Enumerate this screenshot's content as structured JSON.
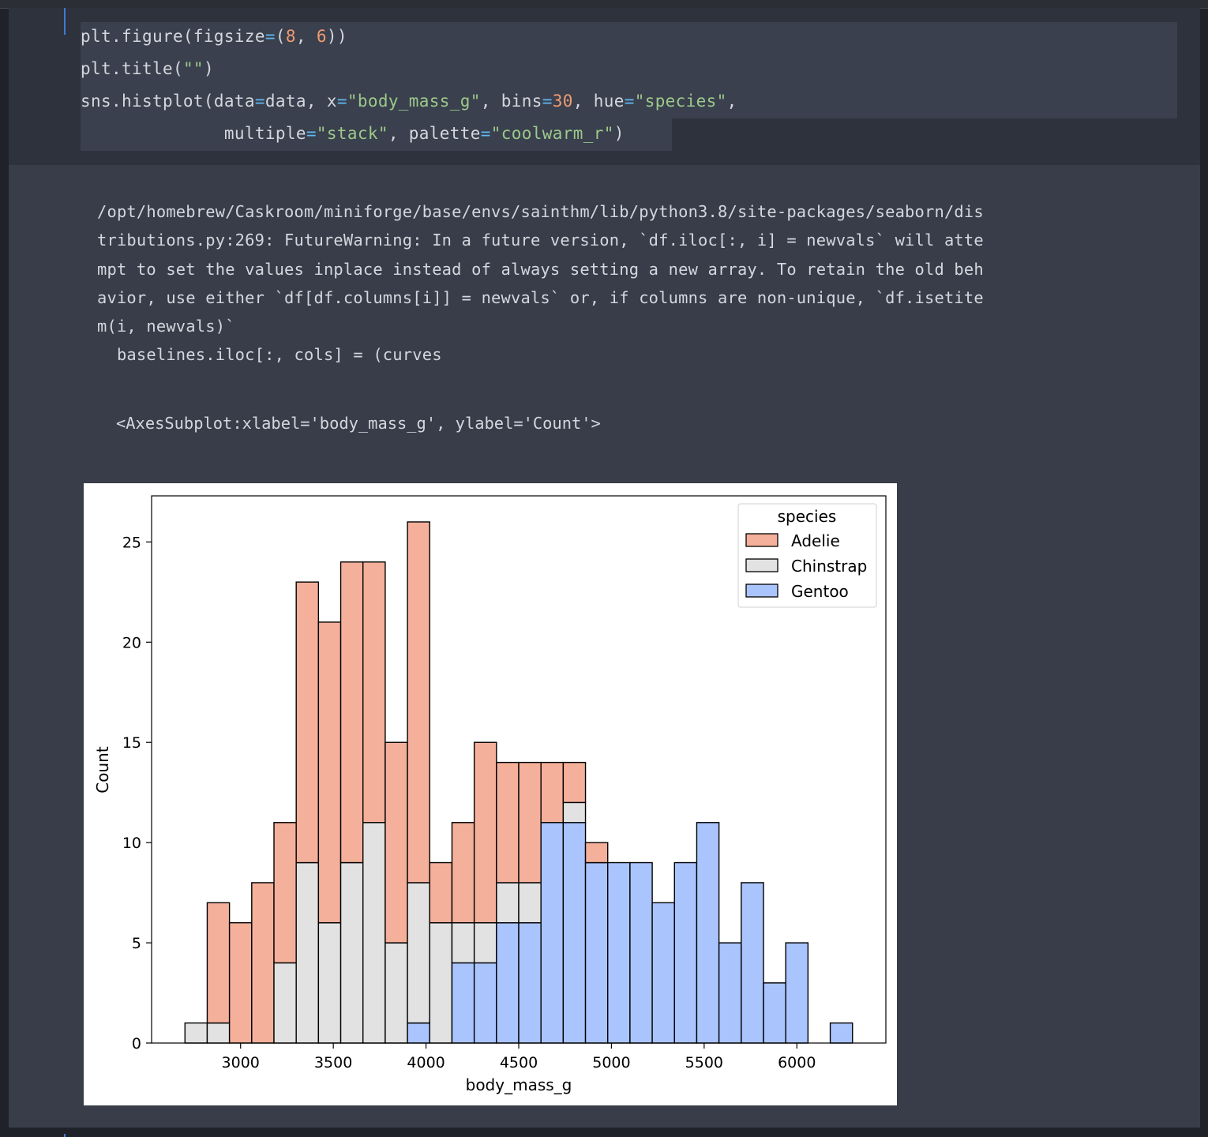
{
  "code": {
    "line1": {
      "a": "plt.figure(figsize",
      "op": "=",
      "b": "(",
      "n1": "8",
      "c": ", ",
      "n2": "6",
      "d": "))"
    },
    "line2": {
      "a": "plt.title(",
      "s": "\"\"",
      "b": ")"
    },
    "line3": {
      "a": "sns.histplot(data",
      "op1": "=",
      "b": "data, x",
      "op2": "=",
      "s1": "\"body_mass_g\"",
      "c": ", bins",
      "op3": "=",
      "n1": "30",
      "d": ", hue",
      "op4": "=",
      "s2": "\"species\"",
      "e": ","
    },
    "line4": {
      "indent": "              ",
      "a": "multiple",
      "op1": "=",
      "s1": "\"stack\"",
      "b": ", palette",
      "op2": "=",
      "s2": "\"coolwarm_r\"",
      "c": ")"
    }
  },
  "output": {
    "stderr_lines": [
      "/opt/homebrew/Caskroom/miniforge/base/envs/sainthm/lib/python3.8/site-packages/seaborn/dis",
      "tributions.py:269: FutureWarning: In a future version, `df.iloc[:, i] = newvals` will atte",
      "mpt to set the values inplace instead of always setting a new array. To retain the old beh",
      "avior, use either `df[df.columns[i]] = newvals` or, if columns are non-unique, `df.isetite",
      "m(i, newvals)`",
      "  baselines.iloc[:, cols] = (curves"
    ],
    "repr": "<AxesSubplot:xlabel='body_mass_g', ylabel='Count'>"
  },
  "chart_data": {
    "type": "bar",
    "subtype": "stacked-histogram",
    "xlabel": "body_mass_g",
    "ylabel": "Count",
    "xlim": [
      2520,
      6480
    ],
    "ylim": [
      0,
      27.3
    ],
    "xticks": [
      3000,
      3500,
      4000,
      4500,
      5000,
      5500,
      6000
    ],
    "yticks": [
      0,
      5,
      10,
      15,
      20,
      25
    ],
    "bin_start": 2700,
    "bin_width": 120,
    "legend": {
      "title": "species",
      "placement": "top-right"
    },
    "series": [
      {
        "name": "Adelie",
        "color": "#f4b09a",
        "values": [
          0,
          6,
          6,
          8,
          7,
          14,
          15,
          15,
          13,
          10,
          18,
          3,
          5,
          9,
          6,
          6,
          3,
          2,
          1,
          0,
          0,
          0,
          0,
          0,
          0,
          0,
          0,
          0,
          0,
          0
        ]
      },
      {
        "name": "Chinstrap",
        "color": "#e2e2e2",
        "values": [
          1,
          1,
          0,
          0,
          4,
          9,
          6,
          9,
          11,
          5,
          7,
          6,
          2,
          2,
          2,
          2,
          0,
          1,
          0,
          0,
          0,
          0,
          0,
          0,
          0,
          0,
          0,
          0,
          0,
          0
        ]
      },
      {
        "name": "Gentoo",
        "color": "#aac4fd",
        "values": [
          0,
          0,
          0,
          0,
          0,
          0,
          0,
          0,
          0,
          0,
          1,
          0,
          4,
          4,
          6,
          6,
          11,
          11,
          9,
          9,
          9,
          7,
          9,
          11,
          5,
          8,
          3,
          5,
          0,
          1
        ]
      }
    ]
  }
}
